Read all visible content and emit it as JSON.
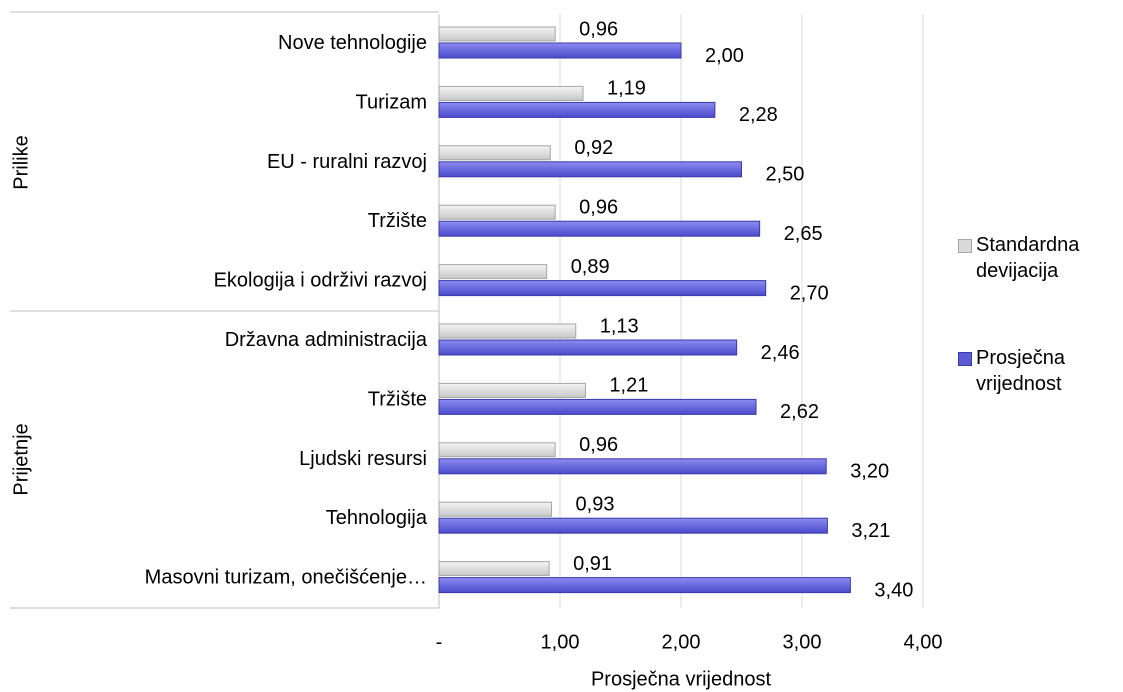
{
  "chart_data": {
    "type": "bar",
    "orientation": "horizontal",
    "x_label": "Prosječna vrijednost",
    "groups": [
      "Prilike",
      "Prijetnje"
    ],
    "categories": [
      "Nove tehnologije",
      "Turizam",
      "EU - ruralni razvoj",
      "Tržište",
      "Ekologija i održivi razvoj",
      "Državna administracija",
      "Tržište",
      "Ljudski resursi",
      "Tehnologija",
      "Masovni turizam, onečišćenje…"
    ],
    "series": [
      {
        "name": "Standardna devijacija",
        "color": "#d9d9d9",
        "values": [
          0.96,
          1.19,
          0.92,
          0.96,
          0.89,
          1.13,
          1.21,
          0.96,
          0.93,
          0.91
        ],
        "value_labels": [
          "0,96",
          "1,19",
          "0,92",
          "0,96",
          "0,89",
          "1,13",
          "1,21",
          "0,96",
          "0,93",
          "0,91"
        ]
      },
      {
        "name": "Prosječna vrijednost",
        "color": "#5b5bd6",
        "values": [
          2.0,
          2.28,
          2.5,
          2.65,
          2.7,
          2.46,
          2.62,
          3.2,
          3.21,
          3.4
        ],
        "value_labels": [
          "2,00",
          "2,28",
          "2,50",
          "2,65",
          "2,70",
          "2,46",
          "2,62",
          "3,20",
          "3,21",
          "3,40"
        ]
      }
    ],
    "xlim": [
      0,
      4
    ],
    "xticks": [
      {
        "value": 0,
        "label": "-"
      },
      {
        "value": 1,
        "label": "1,00"
      },
      {
        "value": 2,
        "label": "2,00"
      },
      {
        "value": 3,
        "label": "3,00"
      },
      {
        "value": 4,
        "label": "4,00"
      }
    ],
    "grid": true,
    "legend": "right"
  }
}
